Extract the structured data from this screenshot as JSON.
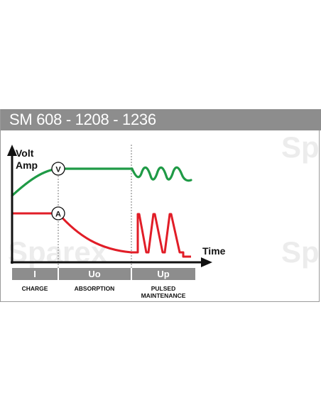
{
  "header": {
    "title": "SM 608 - 1208 - 1236"
  },
  "watermark": {
    "text": "Sparex"
  },
  "axis": {
    "y_label_line1": "Volt",
    "y_label_line2": "Amp",
    "x_label": "Time"
  },
  "markers": {
    "voltage": "V",
    "current": "A"
  },
  "phases": [
    {
      "code": "I",
      "name_line1": "CHARGE",
      "name_line2": ""
    },
    {
      "code": "Uo",
      "name_line1": "ABSORPTION",
      "name_line2": ""
    },
    {
      "code": "Up",
      "name_line1": "PULSED",
      "name_line2": "MAINTENANCE"
    }
  ],
  "colors": {
    "voltage": "#1f9a46",
    "current": "#e11d27",
    "header_bg": "#8d8d8d",
    "phase_bar": "#8d8d8d",
    "axis": "#111111"
  }
}
